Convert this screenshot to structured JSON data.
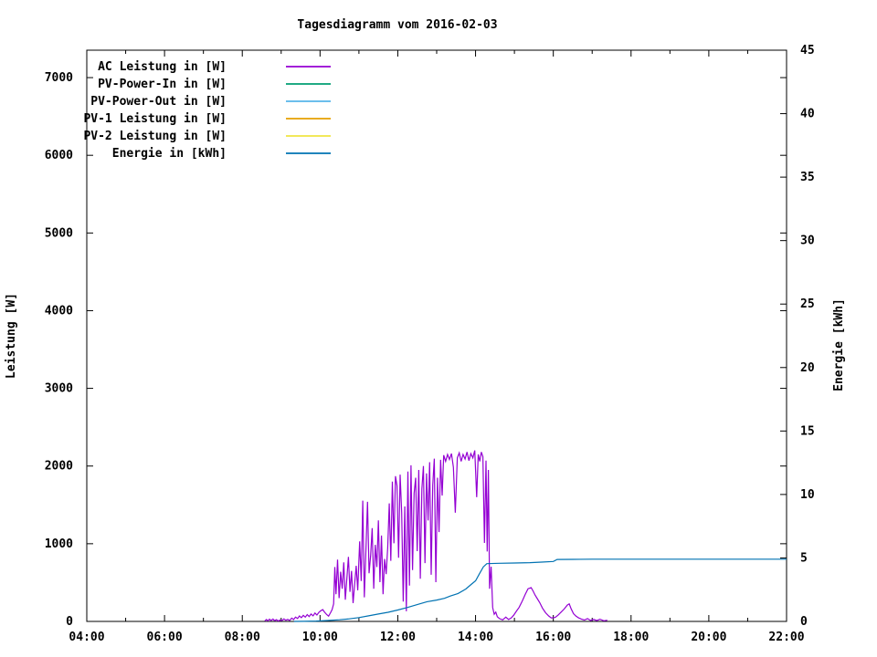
{
  "background_color": "#ffffff",
  "chart_data": {
    "type": "line",
    "title": "Tagesdiagramm vom 2016-02-03",
    "grid": "off",
    "legend_position": "top-left-inside",
    "x_axis": {
      "label": "",
      "unit": "time",
      "range_hours": [
        4,
        22
      ],
      "tick_values": [
        4,
        6,
        8,
        10,
        12,
        14,
        16,
        18,
        20,
        22
      ],
      "tick_labels": [
        "04:00",
        "06:00",
        "08:00",
        "10:00",
        "12:00",
        "14:00",
        "16:00",
        "18:00",
        "20:00",
        "22:00"
      ],
      "minor_tick_values": [
        5,
        7,
        9,
        11,
        13,
        15,
        17,
        19,
        21
      ]
    },
    "y_axis": {
      "label": "Leistung [W]",
      "range": [
        0,
        7353
      ],
      "tick_values": [
        0,
        1000,
        2000,
        3000,
        4000,
        5000,
        6000,
        7000
      ],
      "tick_labels": [
        "0",
        "1000",
        "2000",
        "3000",
        "4000",
        "5000",
        "6000",
        "7000"
      ]
    },
    "y2_axis": {
      "label": "Energie [kWh]",
      "range": [
        0,
        45
      ],
      "tick_values": [
        0,
        5,
        10,
        15,
        20,
        25,
        30,
        35,
        40,
        45
      ],
      "tick_labels": [
        "0",
        "5",
        "10",
        "15",
        "20",
        "25",
        "30",
        "35",
        "40",
        "45"
      ]
    },
    "series": [
      {
        "name": "AC Leistung in [W]",
        "color": "#9400d3",
        "axis": "y1",
        "points": [
          [
            8.58,
            5
          ],
          [
            8.62,
            25
          ],
          [
            8.66,
            8
          ],
          [
            8.7,
            28
          ],
          [
            8.74,
            12
          ],
          [
            8.79,
            30
          ],
          [
            8.83,
            10
          ],
          [
            8.88,
            22
          ],
          [
            8.92,
            6
          ],
          [
            8.97,
            18
          ],
          [
            9.02,
            10
          ],
          [
            9.07,
            32
          ],
          [
            9.12,
            15
          ],
          [
            9.17,
            26
          ],
          [
            9.22,
            12
          ],
          [
            9.27,
            42
          ],
          [
            9.32,
            25
          ],
          [
            9.37,
            55
          ],
          [
            9.42,
            38
          ],
          [
            9.47,
            70
          ],
          [
            9.52,
            48
          ],
          [
            9.57,
            78
          ],
          [
            9.62,
            55
          ],
          [
            9.67,
            88
          ],
          [
            9.72,
            62
          ],
          [
            9.77,
            95
          ],
          [
            9.82,
            72
          ],
          [
            9.87,
            108
          ],
          [
            9.92,
            82
          ],
          [
            9.97,
            118
          ],
          [
            10.02,
            138
          ],
          [
            10.07,
            152
          ],
          [
            10.12,
            118
          ],
          [
            10.17,
            88
          ],
          [
            10.22,
            68
          ],
          [
            10.27,
            112
          ],
          [
            10.31,
            150
          ],
          [
            10.35,
            225
          ],
          [
            10.38,
            700
          ],
          [
            10.41,
            350
          ],
          [
            10.45,
            795
          ],
          [
            10.49,
            300
          ],
          [
            10.53,
            640
          ],
          [
            10.57,
            420
          ],
          [
            10.61,
            760
          ],
          [
            10.65,
            280
          ],
          [
            10.69,
            555
          ],
          [
            10.73,
            830
          ],
          [
            10.77,
            380
          ],
          [
            10.81,
            650
          ],
          [
            10.85,
            235
          ],
          [
            10.89,
            480
          ],
          [
            10.93,
            715
          ],
          [
            10.97,
            400
          ],
          [
            11.02,
            1030
          ],
          [
            11.06,
            520
          ],
          [
            11.1,
            1555
          ],
          [
            11.14,
            310
          ],
          [
            11.18,
            900
          ],
          [
            11.22,
            1540
          ],
          [
            11.26,
            620
          ],
          [
            11.3,
            845
          ],
          [
            11.34,
            1200
          ],
          [
            11.38,
            420
          ],
          [
            11.42,
            985
          ],
          [
            11.46,
            700
          ],
          [
            11.5,
            1300
          ],
          [
            11.54,
            505
          ],
          [
            11.58,
            1105
          ],
          [
            11.62,
            350
          ],
          [
            11.66,
            805
          ],
          [
            11.7,
            608
          ],
          [
            11.74,
            950
          ],
          [
            11.78,
            1520
          ],
          [
            11.82,
            780
          ],
          [
            11.86,
            1800
          ],
          [
            11.9,
            1005
          ],
          [
            11.94,
            1870
          ],
          [
            11.98,
            1745
          ],
          [
            12.02,
            820
          ],
          [
            12.06,
            1890
          ],
          [
            12.1,
            1400
          ],
          [
            12.14,
            255
          ],
          [
            12.18,
            1480
          ],
          [
            12.22,
            130
          ],
          [
            12.26,
            1930
          ],
          [
            12.3,
            460
          ],
          [
            12.34,
            2010
          ],
          [
            12.38,
            660
          ],
          [
            12.42,
            1650
          ],
          [
            12.46,
            1850
          ],
          [
            12.5,
            905
          ],
          [
            12.54,
            1950
          ],
          [
            12.58,
            550
          ],
          [
            12.62,
            1705
          ],
          [
            12.66,
            2000
          ],
          [
            12.7,
            750
          ],
          [
            12.74,
            1905
          ],
          [
            12.78,
            1300
          ],
          [
            12.82,
            2050
          ],
          [
            12.86,
            600
          ],
          [
            12.9,
            1755
          ],
          [
            12.94,
            2095
          ],
          [
            12.98,
            505
          ],
          [
            13.02,
            1850
          ],
          [
            13.06,
            1150
          ],
          [
            13.1,
            2080
          ],
          [
            13.14,
            1620
          ],
          [
            13.18,
            2140
          ],
          [
            13.23,
            2060
          ],
          [
            13.28,
            2150
          ],
          [
            13.33,
            2085
          ],
          [
            13.38,
            2160
          ],
          [
            13.43,
            1985
          ],
          [
            13.48,
            1400
          ],
          [
            13.53,
            2105
          ],
          [
            13.58,
            2170
          ],
          [
            13.63,
            2060
          ],
          [
            13.68,
            2150
          ],
          [
            13.73,
            2090
          ],
          [
            13.78,
            2180
          ],
          [
            13.83,
            2070
          ],
          [
            13.88,
            2160
          ],
          [
            13.93,
            2105
          ],
          [
            13.98,
            2200
          ],
          [
            14.03,
            1600
          ],
          [
            14.07,
            2150
          ],
          [
            14.11,
            2060
          ],
          [
            14.15,
            2180
          ],
          [
            14.19,
            2120
          ],
          [
            14.23,
            1010
          ],
          [
            14.27,
            2070
          ],
          [
            14.3,
            900
          ],
          [
            14.33,
            1950
          ],
          [
            14.36,
            420
          ],
          [
            14.4,
            705
          ],
          [
            14.44,
            180
          ],
          [
            14.48,
            92
          ],
          [
            14.52,
            120
          ],
          [
            14.56,
            60
          ],
          [
            14.62,
            35
          ],
          [
            14.7,
            20
          ],
          [
            14.78,
            55
          ],
          [
            14.85,
            25
          ],
          [
            14.92,
            45
          ],
          [
            14.98,
            80
          ],
          [
            15.05,
            130
          ],
          [
            15.12,
            180
          ],
          [
            15.2,
            260
          ],
          [
            15.28,
            350
          ],
          [
            15.35,
            420
          ],
          [
            15.43,
            435
          ],
          [
            15.48,
            392
          ],
          [
            15.53,
            340
          ],
          [
            15.58,
            300
          ],
          [
            15.65,
            242
          ],
          [
            15.72,
            172
          ],
          [
            15.8,
            112
          ],
          [
            15.88,
            70
          ],
          [
            15.95,
            45
          ],
          [
            16.05,
            52
          ],
          [
            16.12,
            80
          ],
          [
            16.2,
            120
          ],
          [
            16.28,
            160
          ],
          [
            16.36,
            210
          ],
          [
            16.41,
            225
          ],
          [
            16.46,
            162
          ],
          [
            16.52,
            100
          ],
          [
            16.58,
            70
          ],
          [
            16.65,
            46
          ],
          [
            16.72,
            30
          ],
          [
            16.8,
            18
          ],
          [
            16.88,
            36
          ],
          [
            16.96,
            12
          ],
          [
            17.04,
            26
          ],
          [
            17.12,
            10
          ],
          [
            17.2,
            28
          ],
          [
            17.3,
            8
          ],
          [
            17.39,
            15
          ]
        ]
      },
      {
        "name": "PV-Power-In in [W]",
        "color": "#009e73",
        "axis": "y1",
        "points": []
      },
      {
        "name": "PV-Power-Out in [W]",
        "color": "#56b4e9",
        "axis": "y1",
        "points": []
      },
      {
        "name": "PV-1 Leistung in [W]",
        "color": "#e69f00",
        "axis": "y1",
        "points": []
      },
      {
        "name": "PV-2 Leistung in [W]",
        "color": "#f0e442",
        "axis": "y1",
        "points": []
      },
      {
        "name": "Energie in [kWh]",
        "color": "#0072b2",
        "axis": "y2",
        "points": [
          [
            9.33,
            0.0
          ],
          [
            9.6,
            0.01
          ],
          [
            9.9,
            0.03
          ],
          [
            10.2,
            0.07
          ],
          [
            10.5,
            0.13
          ],
          [
            10.75,
            0.2
          ],
          [
            11.0,
            0.3
          ],
          [
            11.25,
            0.44
          ],
          [
            11.5,
            0.58
          ],
          [
            11.75,
            0.72
          ],
          [
            12.0,
            0.9
          ],
          [
            12.25,
            1.1
          ],
          [
            12.5,
            1.32
          ],
          [
            12.75,
            1.55
          ],
          [
            13.0,
            1.68
          ],
          [
            13.2,
            1.82
          ],
          [
            13.35,
            2.0
          ],
          [
            13.55,
            2.2
          ],
          [
            13.75,
            2.55
          ],
          [
            13.9,
            2.95
          ],
          [
            14.0,
            3.2
          ],
          [
            14.1,
            3.75
          ],
          [
            14.2,
            4.3
          ],
          [
            14.29,
            4.55
          ],
          [
            14.6,
            4.58
          ],
          [
            15.0,
            4.6
          ],
          [
            15.4,
            4.63
          ],
          [
            15.7,
            4.67
          ],
          [
            16.0,
            4.72
          ],
          [
            16.1,
            4.88
          ],
          [
            16.5,
            4.89
          ],
          [
            17.0,
            4.9
          ],
          [
            18.0,
            4.9
          ],
          [
            20.0,
            4.9
          ],
          [
            22.0,
            4.9
          ]
        ]
      }
    ]
  }
}
